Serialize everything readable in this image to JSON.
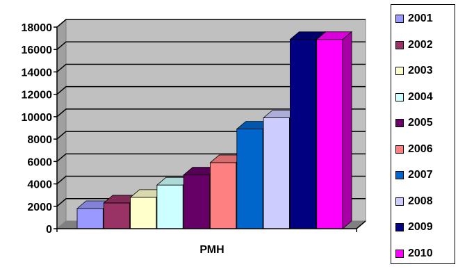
{
  "chart_data": {
    "type": "bar",
    "title": "",
    "xlabel": "РМН",
    "ylabel": "",
    "ylim": [
      0,
      18000
    ],
    "yticks": [
      0,
      2000,
      4000,
      6000,
      8000,
      10000,
      12000,
      14000,
      16000,
      18000
    ],
    "grid": true,
    "three_d": true,
    "legend_position": "right",
    "categories": [
      "РМН"
    ],
    "series": [
      {
        "name": "2001",
        "values": [
          1800
        ],
        "color": "#9999ff"
      },
      {
        "name": "2002",
        "values": [
          2300
        ],
        "color": "#993366"
      },
      {
        "name": "2003",
        "values": [
          2800
        ],
        "color": "#ffffcc"
      },
      {
        "name": "2004",
        "values": [
          3900
        ],
        "color": "#ccffff"
      },
      {
        "name": "2005",
        "values": [
          4800
        ],
        "color": "#660066"
      },
      {
        "name": "2006",
        "values": [
          5900
        ],
        "color": "#ff8080"
      },
      {
        "name": "2007",
        "values": [
          8900
        ],
        "color": "#0066cc"
      },
      {
        "name": "2008",
        "values": [
          9900
        ],
        "color": "#ccccff"
      },
      {
        "name": "2009",
        "values": [
          16900
        ],
        "color": "#000080"
      },
      {
        "name": "2010",
        "values": [
          16900
        ],
        "color": "#ff00ff"
      }
    ]
  }
}
